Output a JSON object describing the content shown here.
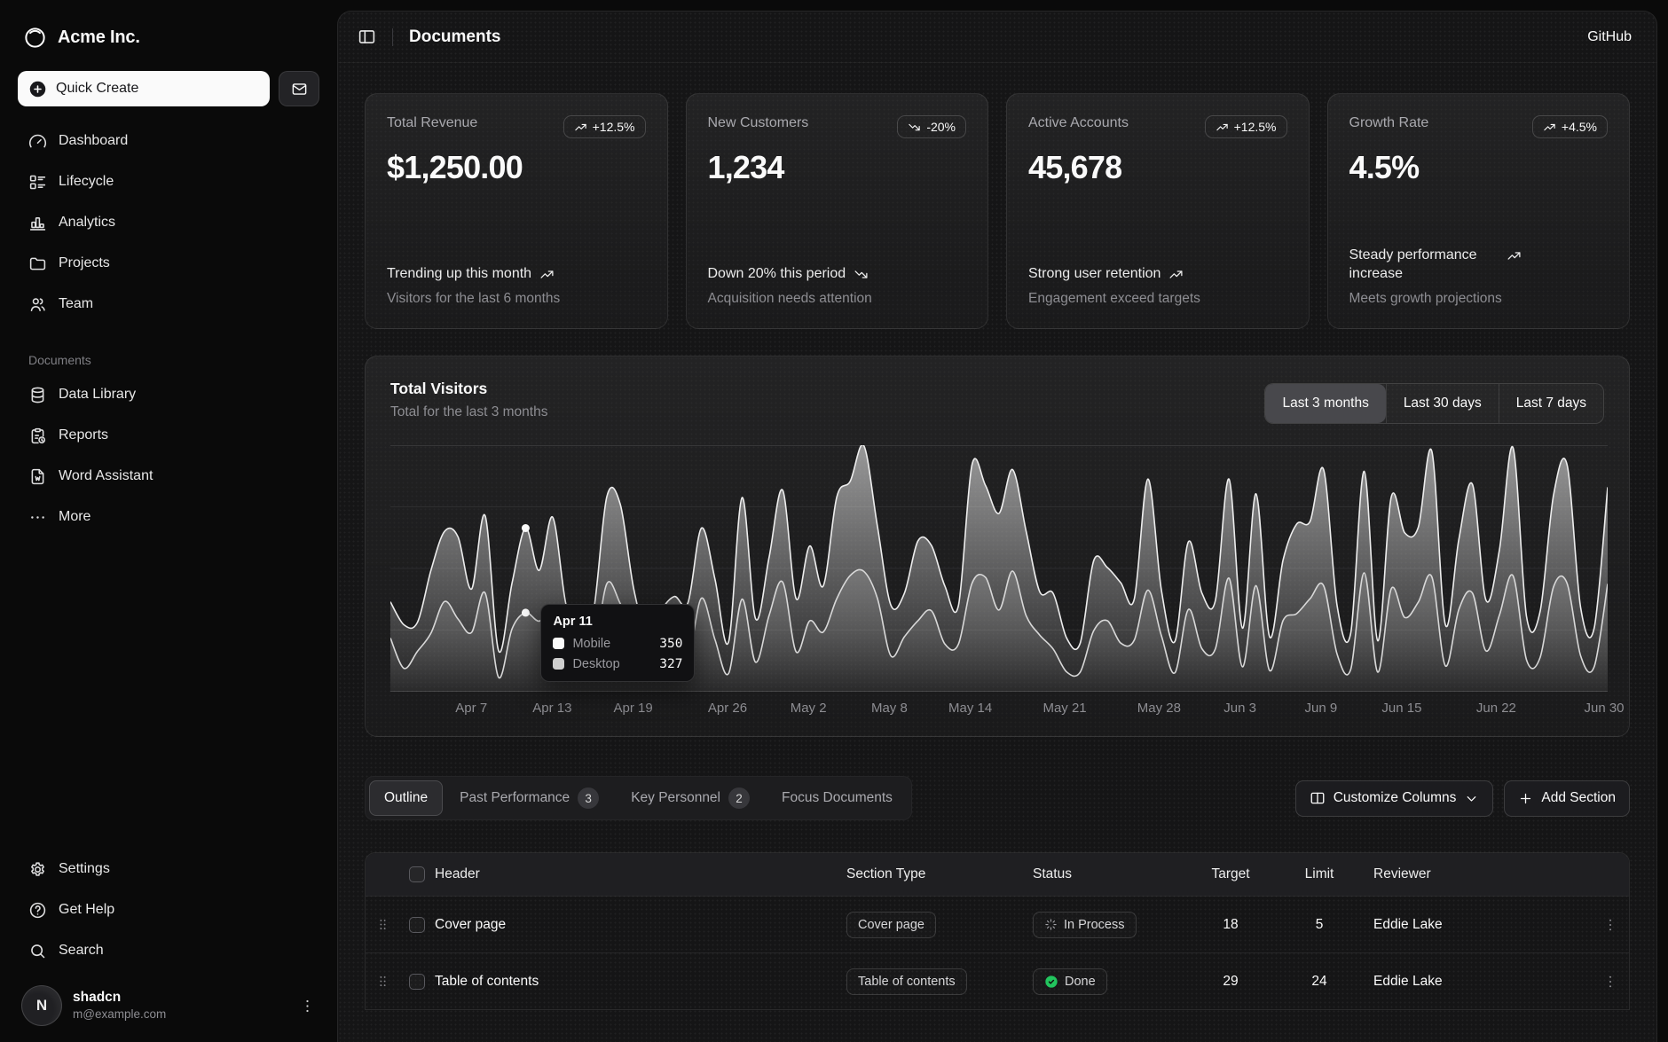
{
  "sidebar": {
    "brand": "Acme Inc.",
    "quick_create_label": "Quick Create",
    "nav_main": [
      {
        "label": "Dashboard",
        "icon": "gauge"
      },
      {
        "label": "Lifecycle",
        "icon": "list-details"
      },
      {
        "label": "Analytics",
        "icon": "chart-bar"
      },
      {
        "label": "Projects",
        "icon": "folder"
      },
      {
        "label": "Team",
        "icon": "users"
      }
    ],
    "section_label": "Documents",
    "nav_documents": [
      {
        "label": "Data Library",
        "icon": "database"
      },
      {
        "label": "Reports",
        "icon": "report"
      },
      {
        "label": "Word Assistant",
        "icon": "file-word"
      },
      {
        "label": "More",
        "icon": "dots"
      }
    ],
    "nav_footer": [
      {
        "label": "Settings",
        "icon": "settings"
      },
      {
        "label": "Get Help",
        "icon": "help"
      },
      {
        "label": "Search",
        "icon": "search"
      }
    ],
    "user": {
      "name": "shadcn",
      "email": "m@example.com",
      "initial": "N"
    }
  },
  "header": {
    "title": "Documents",
    "link": "GitHub"
  },
  "stat_cards": [
    {
      "title": "Total Revenue",
      "value": "$1,250.00",
      "badge": "+12.5%",
      "trend": "up",
      "foot_main": "Trending up this month",
      "foot_sub": "Visitors for the last 6 months"
    },
    {
      "title": "New Customers",
      "value": "1,234",
      "badge": "-20%",
      "trend": "down",
      "foot_main": "Down 20% this period",
      "foot_sub": "Acquisition needs attention"
    },
    {
      "title": "Active Accounts",
      "value": "45,678",
      "badge": "+12.5%",
      "trend": "up",
      "foot_main": "Strong user retention",
      "foot_sub": "Engagement exceed targets"
    },
    {
      "title": "Growth Rate",
      "value": "4.5%",
      "badge": "+4.5%",
      "trend": "up",
      "foot_main": "Steady performance increase",
      "foot_sub": "Meets growth projections"
    }
  ],
  "visitors_card": {
    "title": "Total Visitors",
    "subtitle": "Total for the last 3 months",
    "ranges": [
      "Last 3 months",
      "Last 30 days",
      "Last 7 days"
    ],
    "active_range": "Last 3 months"
  },
  "chart_data": {
    "type": "area",
    "stacked": true,
    "title": "Total Visitors",
    "x_range": "Apr 1 - Jun 30",
    "ylim": [
      0,
      1020
    ],
    "grid": "horizontal",
    "ticks": [
      {
        "label": "Apr 7",
        "i": 6
      },
      {
        "label": "Apr 13",
        "i": 12
      },
      {
        "label": "Apr 19",
        "i": 18
      },
      {
        "label": "Apr 26",
        "i": 25
      },
      {
        "label": "May 2",
        "i": 31
      },
      {
        "label": "May 8",
        "i": 37
      },
      {
        "label": "May 14",
        "i": 43
      },
      {
        "label": "May 21",
        "i": 50
      },
      {
        "label": "May 28",
        "i": 57
      },
      {
        "label": "Jun 3",
        "i": 63
      },
      {
        "label": "Jun 9",
        "i": 69
      },
      {
        "label": "Jun 15",
        "i": 75
      },
      {
        "label": "Jun 22",
        "i": 82
      },
      {
        "label": "Jun 30",
        "i": 90
      }
    ],
    "series": [
      {
        "name": "Desktop",
        "values": [
          222,
          97,
          167,
          242,
          373,
          301,
          245,
          409,
          59,
          261,
          327,
          292,
          342,
          137,
          120,
          138,
          446,
          364,
          243,
          89,
          137,
          224,
          138,
          387,
          215,
          75,
          383,
          122,
          315,
          454,
          165,
          293,
          247,
          385,
          481,
          498,
          388,
          149,
          227,
          293,
          335,
          197,
          197,
          448,
          473,
          338,
          499,
          315,
          235,
          177,
          82,
          81,
          252,
          294,
          201,
          213,
          420,
          233,
          78,
          340,
          178,
          178,
          470,
          103,
          439,
          88,
          294,
          323,
          385,
          438,
          155,
          92,
          492,
          81,
          426,
          307,
          371,
          475,
          107,
          341,
          408,
          169,
          317,
          480,
          132,
          141,
          434,
          448,
          149,
          103,
          446
        ]
      },
      {
        "name": "Mobile",
        "values": [
          150,
          180,
          120,
          260,
          290,
          340,
          180,
          320,
          110,
          190,
          350,
          210,
          380,
          220,
          170,
          190,
          360,
          410,
          180,
          150,
          200,
          170,
          230,
          290,
          250,
          130,
          420,
          180,
          240,
          380,
          220,
          310,
          190,
          420,
          390,
          520,
          300,
          210,
          180,
          330,
          270,
          240,
          160,
          490,
          380,
          400,
          420,
          350,
          180,
          230,
          140,
          120,
          290,
          220,
          250,
          170,
          460,
          190,
          130,
          280,
          230,
          200,
          410,
          160,
          380,
          140,
          250,
          370,
          320,
          480,
          200,
          150,
          420,
          130,
          380,
          350,
          310,
          520,
          170,
          290,
          450,
          210,
          270,
          530,
          180,
          190,
          380,
          490,
          200,
          160,
          400
        ]
      }
    ],
    "tooltip": {
      "date": "Apr 11",
      "index": 10,
      "rows": [
        {
          "label": "Mobile",
          "value": "350"
        },
        {
          "label": "Desktop",
          "value": "327"
        }
      ]
    },
    "colors": {
      "line_top": "#ededed",
      "line_bottom": "#d8d8d8",
      "fill_top": "#fafafa",
      "fill_bottom": "#8a8a8a",
      "swatches": [
        "#fafafa",
        "#cfcfcf"
      ],
      "grid": "rgba(255,255,255,0.07)"
    }
  },
  "tabs": [
    {
      "label": "Outline",
      "active": true
    },
    {
      "label": "Past Performance",
      "badge": "3"
    },
    {
      "label": "Key Personnel",
      "badge": "2"
    },
    {
      "label": "Focus Documents"
    }
  ],
  "table_actions": {
    "customize": "Customize Columns",
    "add": "Add Section"
  },
  "table": {
    "columns": [
      "Header",
      "Section Type",
      "Status",
      "Target",
      "Limit",
      "Reviewer"
    ],
    "rows": [
      {
        "header": "Cover page",
        "type": "Cover page",
        "status": "In Process",
        "status_kind": "process",
        "target": "18",
        "limit": "5",
        "reviewer": "Eddie Lake"
      },
      {
        "header": "Table of contents",
        "type": "Table of contents",
        "status": "Done",
        "status_kind": "done",
        "target": "29",
        "limit": "24",
        "reviewer": "Eddie Lake"
      }
    ]
  }
}
